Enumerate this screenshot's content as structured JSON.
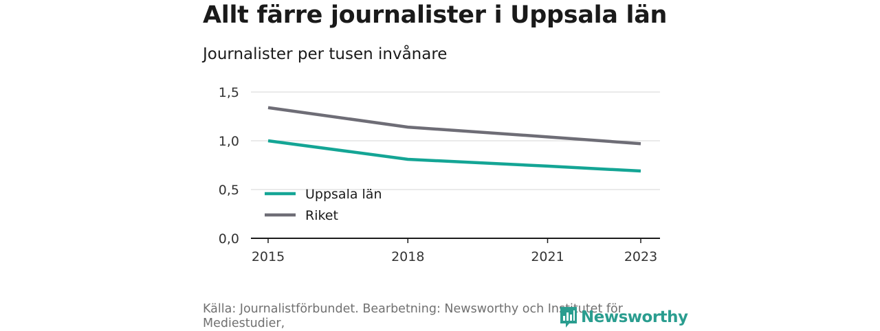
{
  "title": "Allt färre journalister i Uppsala län",
  "subtitle": "Journalister per tusen invånare",
  "source": "Källa: Journalistförbundet. Bearbetning: Newsworthy och Institutet för Mediestudier,",
  "logo": {
    "text": "Newsworthy",
    "icon": "newsworthy-chart-icon",
    "color": "#2a9d8f"
  },
  "chart_data": {
    "type": "line",
    "title": "Allt färre journalister i Uppsala län",
    "ylabel": "Journalister per tusen invånare",
    "xlabel": "",
    "xlim": [
      2015,
      2023
    ],
    "ylim": [
      0,
      1.5
    ],
    "x_ticks": [
      2015,
      2018,
      2021,
      2023
    ],
    "y_ticks": [
      0,
      0.5,
      1.0,
      1.5
    ],
    "y_tick_labels": [
      "0,0",
      "0,5",
      "1,0",
      "1,5"
    ],
    "grid": true,
    "legend": "bottom-left",
    "series": [
      {
        "name": "Uppsala län",
        "color": "#14a595",
        "x": [
          2015,
          2018,
          2021,
          2023
        ],
        "values": [
          1.0,
          0.81,
          0.74,
          0.69
        ]
      },
      {
        "name": "Riket",
        "color": "#6e6d76",
        "x": [
          2015,
          2018,
          2021,
          2023
        ],
        "values": [
          1.34,
          1.14,
          1.04,
          0.97
        ]
      }
    ]
  }
}
